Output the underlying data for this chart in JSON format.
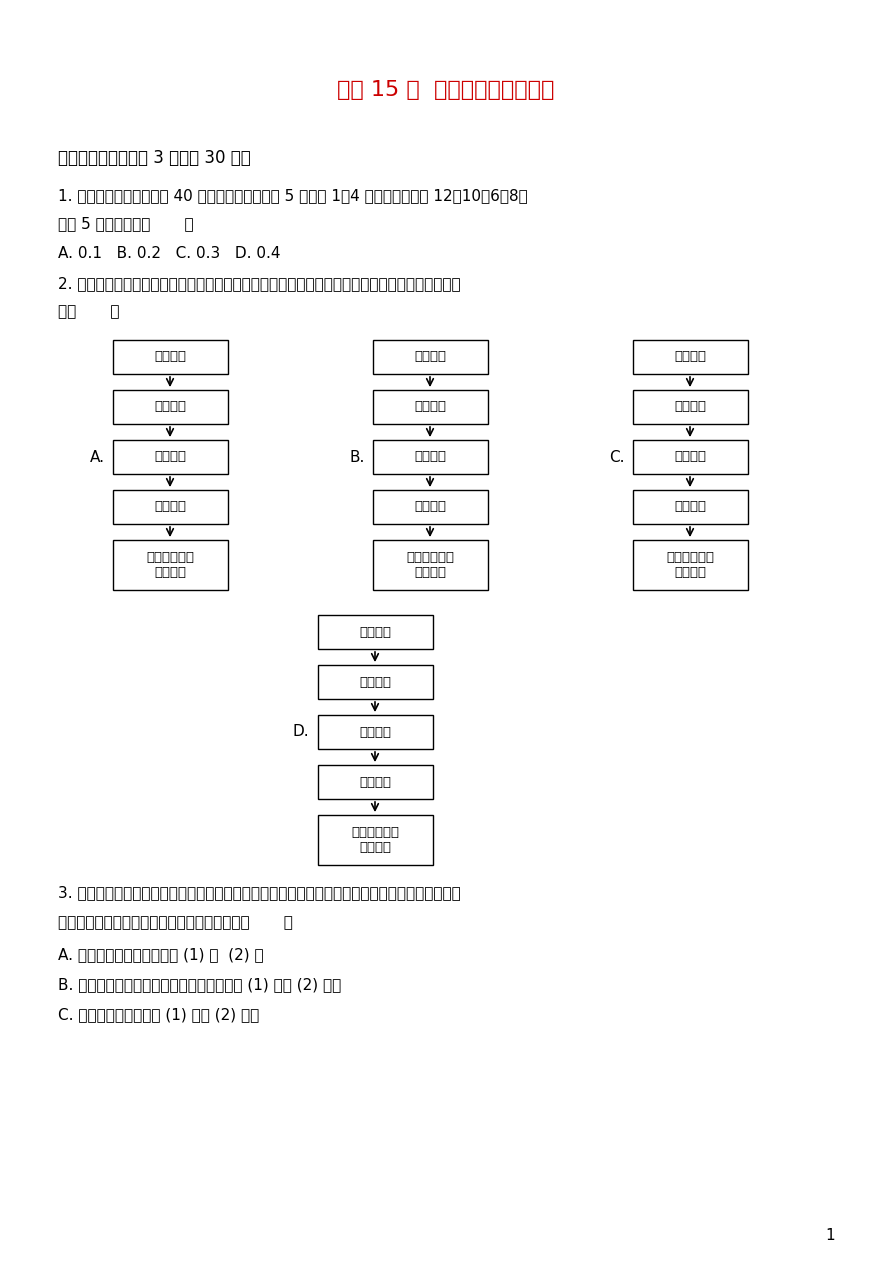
{
  "title": "《第 15 章  数据的收集与表示》",
  "title_color": "#cc0000",
  "title_fontsize": 16,
  "section1": "一、选择题（每小题 3 分，共 30 分）",
  "q1_line1": "1. 一次数学测试后，某班 40 名学生的成绩被分为 5 组，第 1～4 组的频数分别为 12、10、6、8，",
  "q1_line2": "则第 5 组的频率是（       ）",
  "q1_options": "A. 0.1   B. 0.2   C. 0.3   D. 0.4",
  "q2_line1": "2. 下面是四位同学对他们学习小组将要共同进行的一次统计活动分别设计的活动程序，其中正确的",
  "q2_line2": "是（       ）",
  "q3_line1": "3. 某电脑厂家为了安排台式电脑和手提电脑的生产比例，而进行一次市场调查，调查员在调查表中",
  "q3_line2": "设计了下面几个问题，你认为哪个提问不合理（       ）",
  "q3_A": "A. 你明年是否准备购买电脑 (1) 是  (2) 否",
  "q3_B": "B. 如果你明年购买电脑，打算买什么类型的 (1) 台式 (2) 手提",
  "q3_C": "C. 你喜欢哪一类型电脑 (1) 台式 (2) 手提",
  "background_color": "#ffffff",
  "text_color": "#000000",
  "page_number": "1",
  "flowchart_A": [
    "实际问题",
    "数据收集",
    "数据表示",
    "数据处理",
    "解决实际问题\n作出决策"
  ],
  "flowchart_B": [
    "实际问题",
    "数据表示",
    "数据收集",
    "数据处理",
    "解决实际问题\n作出决策"
  ],
  "flowchart_C": [
    "实际问题",
    "数据收集",
    "数据处理",
    "数据表示",
    "解决实际问题\n作出决策"
  ],
  "flowchart_D": [
    "实际问题",
    "数据处理",
    "数据收集",
    "数据表示",
    "解决实际问题\n作出决策"
  ]
}
